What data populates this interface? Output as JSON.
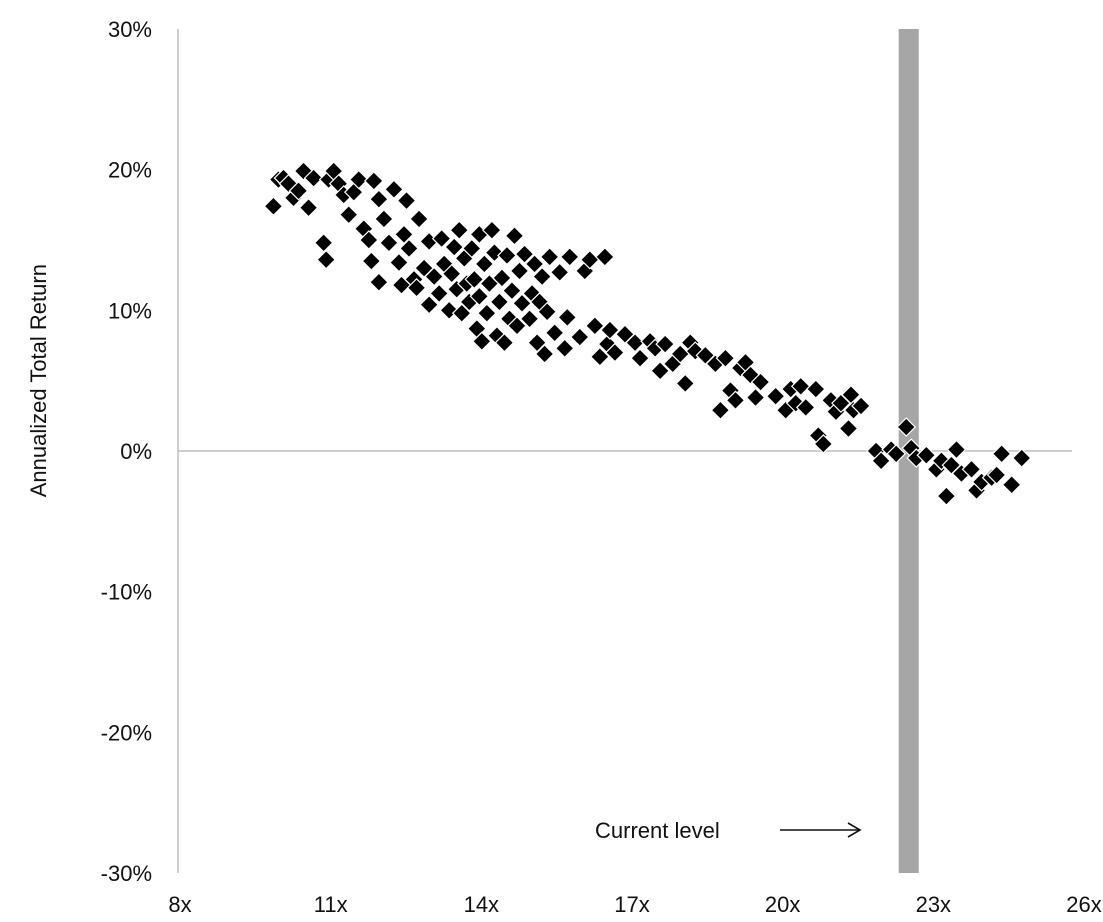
{
  "chart_data": {
    "type": "scatter",
    "title": "",
    "xlabel": "",
    "ylabel": "Annualized Total Return",
    "xlim": [
      8,
      26
    ],
    "ylim": [
      -30,
      30
    ],
    "x_ticks": [
      8,
      11,
      14,
      17,
      20,
      23,
      26
    ],
    "x_tick_labels": [
      "8x",
      "11x",
      "14x",
      "17x",
      "20x",
      "23x",
      "26x"
    ],
    "y_ticks": [
      30,
      20,
      10,
      0,
      -10,
      -20,
      -30
    ],
    "y_tick_labels": [
      "30%",
      "20%",
      "10%",
      "0%",
      "-10%",
      "-20%",
      "-30%"
    ],
    "grid": false,
    "legend": "none",
    "colors": {
      "points": "#000000",
      "axis": "#bfbfbf",
      "highlight_band": "#a6a6a6"
    },
    "highlight": {
      "x_range": [
        22.35,
        22.75
      ],
      "label": "Current level"
    },
    "series": [
      {
        "marker": "diamond",
        "points": [
          [
            9.9,
            17.4
          ],
          [
            10.0,
            19.3
          ],
          [
            10.1,
            19.4
          ],
          [
            10.2,
            19.0
          ],
          [
            10.3,
            18.0
          ],
          [
            10.4,
            18.5
          ],
          [
            10.5,
            19.9
          ],
          [
            10.6,
            17.3
          ],
          [
            10.7,
            19.4
          ],
          [
            10.9,
            14.8
          ],
          [
            10.95,
            13.6
          ],
          [
            11.0,
            19.3
          ],
          [
            11.1,
            19.9
          ],
          [
            11.2,
            19.0
          ],
          [
            11.3,
            18.2
          ],
          [
            11.4,
            16.8
          ],
          [
            11.5,
            18.4
          ],
          [
            11.6,
            19.3
          ],
          [
            11.7,
            15.8
          ],
          [
            11.8,
            15.0
          ],
          [
            11.85,
            13.5
          ],
          [
            11.9,
            19.2
          ],
          [
            12.0,
            12.0
          ],
          [
            12.0,
            17.9
          ],
          [
            12.1,
            16.5
          ],
          [
            12.2,
            14.8
          ],
          [
            12.3,
            18.6
          ],
          [
            12.4,
            13.4
          ],
          [
            12.45,
            11.8
          ],
          [
            12.5,
            15.4
          ],
          [
            12.55,
            17.8
          ],
          [
            12.6,
            14.4
          ],
          [
            12.7,
            12.2
          ],
          [
            12.75,
            11.6
          ],
          [
            12.8,
            16.5
          ],
          [
            12.9,
            13.0
          ],
          [
            13.0,
            10.4
          ],
          [
            13.0,
            14.9
          ],
          [
            13.1,
            12.4
          ],
          [
            13.2,
            11.2
          ],
          [
            13.25,
            15.1
          ],
          [
            13.3,
            13.3
          ],
          [
            13.4,
            10.0
          ],
          [
            13.45,
            12.6
          ],
          [
            13.5,
            14.5
          ],
          [
            13.55,
            11.5
          ],
          [
            13.6,
            15.7
          ],
          [
            13.65,
            9.8
          ],
          [
            13.7,
            13.7
          ],
          [
            13.75,
            11.9
          ],
          [
            13.8,
            10.6
          ],
          [
            13.85,
            14.4
          ],
          [
            13.9,
            12.2
          ],
          [
            13.95,
            8.7
          ],
          [
            14.0,
            11.0
          ],
          [
            14.0,
            15.4
          ],
          [
            14.05,
            7.8
          ],
          [
            14.1,
            13.3
          ],
          [
            14.15,
            9.8
          ],
          [
            14.2,
            11.9
          ],
          [
            14.25,
            15.7
          ],
          [
            14.3,
            14.1
          ],
          [
            14.35,
            8.2
          ],
          [
            14.4,
            10.6
          ],
          [
            14.45,
            12.3
          ],
          [
            14.5,
            7.7
          ],
          [
            14.55,
            13.9
          ],
          [
            14.6,
            9.4
          ],
          [
            14.65,
            11.4
          ],
          [
            14.7,
            15.3
          ],
          [
            14.75,
            8.9
          ],
          [
            14.8,
            12.8
          ],
          [
            14.85,
            10.5
          ],
          [
            14.9,
            14.0
          ],
          [
            15.0,
            9.4
          ],
          [
            15.05,
            11.2
          ],
          [
            15.1,
            13.3
          ],
          [
            15.15,
            7.7
          ],
          [
            15.2,
            10.6
          ],
          [
            15.25,
            12.4
          ],
          [
            15.3,
            6.9
          ],
          [
            15.35,
            9.9
          ],
          [
            15.4,
            13.8
          ],
          [
            15.5,
            8.4
          ],
          [
            15.6,
            12.7
          ],
          [
            15.7,
            7.3
          ],
          [
            15.75,
            9.5
          ],
          [
            15.8,
            13.8
          ],
          [
            16.0,
            8.1
          ],
          [
            16.1,
            12.8
          ],
          [
            16.2,
            13.6
          ],
          [
            16.3,
            8.9
          ],
          [
            16.4,
            6.7
          ],
          [
            16.5,
            13.8
          ],
          [
            16.55,
            7.6
          ],
          [
            16.6,
            8.6
          ],
          [
            16.7,
            7.0
          ],
          [
            16.9,
            8.3
          ],
          [
            17.1,
            7.7
          ],
          [
            17.2,
            6.6
          ],
          [
            17.4,
            7.8
          ],
          [
            17.5,
            7.3
          ],
          [
            17.6,
            5.7
          ],
          [
            17.7,
            7.6
          ],
          [
            17.85,
            6.2
          ],
          [
            18.0,
            6.9
          ],
          [
            18.1,
            4.8
          ],
          [
            18.2,
            7.7
          ],
          [
            18.3,
            7.1
          ],
          [
            18.5,
            6.8
          ],
          [
            18.7,
            6.2
          ],
          [
            18.8,
            2.9
          ],
          [
            18.9,
            6.6
          ],
          [
            19.0,
            4.3
          ],
          [
            19.1,
            3.6
          ],
          [
            19.2,
            5.9
          ],
          [
            19.3,
            6.3
          ],
          [
            19.4,
            5.4
          ],
          [
            19.5,
            3.8
          ],
          [
            19.6,
            4.9
          ],
          [
            19.9,
            3.9
          ],
          [
            20.1,
            2.9
          ],
          [
            20.2,
            4.4
          ],
          [
            20.3,
            3.4
          ],
          [
            20.4,
            4.6
          ],
          [
            20.5,
            3.1
          ],
          [
            20.7,
            4.4
          ],
          [
            20.75,
            1.1
          ],
          [
            20.85,
            0.5
          ],
          [
            21.0,
            3.6
          ],
          [
            21.1,
            2.8
          ],
          [
            21.2,
            3.4
          ],
          [
            21.35,
            1.6
          ],
          [
            21.4,
            4.0
          ],
          [
            21.45,
            2.9
          ],
          [
            21.6,
            3.2
          ],
          [
            21.9,
            0.0
          ],
          [
            22.0,
            -0.7
          ],
          [
            22.2,
            0.1
          ],
          [
            22.3,
            -0.2
          ],
          [
            22.5,
            1.7
          ],
          [
            22.6,
            0.2
          ],
          [
            22.7,
            -0.5
          ],
          [
            22.9,
            -0.3
          ],
          [
            23.1,
            -1.3
          ],
          [
            23.2,
            -0.7
          ],
          [
            23.3,
            -3.2
          ],
          [
            23.4,
            -1.0
          ],
          [
            23.5,
            0.1
          ],
          [
            23.6,
            -1.6
          ],
          [
            23.8,
            -1.3
          ],
          [
            23.9,
            -2.8
          ],
          [
            24.0,
            -2.2
          ],
          [
            24.2,
            -1.9
          ],
          [
            24.3,
            -1.7
          ],
          [
            24.4,
            -0.2
          ],
          [
            24.6,
            -2.4
          ],
          [
            24.8,
            -0.5
          ]
        ]
      }
    ]
  }
}
